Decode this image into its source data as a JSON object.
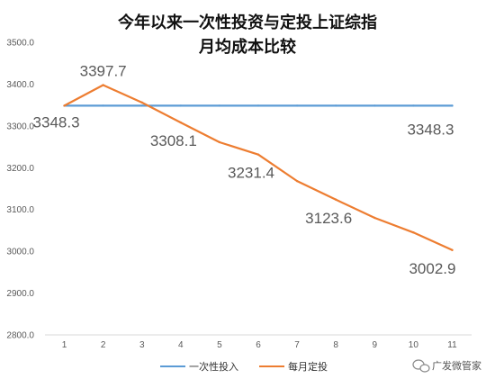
{
  "chart_data": {
    "type": "line",
    "title": "今年以来一次性投资与定投上证综指",
    "subtitle": "月均成本比较",
    "x": [
      1,
      2,
      3,
      4,
      5,
      6,
      7,
      8,
      9,
      10,
      11
    ],
    "ylim": [
      2800,
      3500
    ],
    "yticks": [
      "2800.0",
      "2900.0",
      "3000.0",
      "3100.0",
      "3200.0",
      "3300.0",
      "3400.0",
      "3500.0"
    ],
    "grid": false,
    "legend_position": "bottom",
    "series": [
      {
        "name": "一次性投入",
        "color": "#5B9BD5",
        "values": [
          3348.3,
          3348.3,
          3348.3,
          3348.3,
          3348.3,
          3348.3,
          3348.3,
          3348.3,
          3348.3,
          3348.3,
          3348.3
        ]
      },
      {
        "name": "每月定投",
        "color": "#ED7D31",
        "values": [
          3348.3,
          3397.7,
          3356.0,
          3308.1,
          3261.0,
          3231.4,
          3168.0,
          3123.6,
          3080.0,
          3045.0,
          3002.9
        ]
      }
    ],
    "data_labels": [
      {
        "series": 1,
        "index": 1,
        "text": "3397.7"
      },
      {
        "series": 0,
        "index": 0,
        "text": "3348.3"
      },
      {
        "series": 1,
        "index": 3,
        "text": "3308.1"
      },
      {
        "series": 1,
        "index": 5,
        "text": "3231.4"
      },
      {
        "series": 1,
        "index": 7,
        "text": "3123.6"
      },
      {
        "series": 0,
        "index": 10,
        "text": "3348.3"
      },
      {
        "series": 1,
        "index": 10,
        "text": "3002.9"
      }
    ]
  },
  "watermark": {
    "icon": "wechat-icon",
    "text": "广发微管家"
  }
}
